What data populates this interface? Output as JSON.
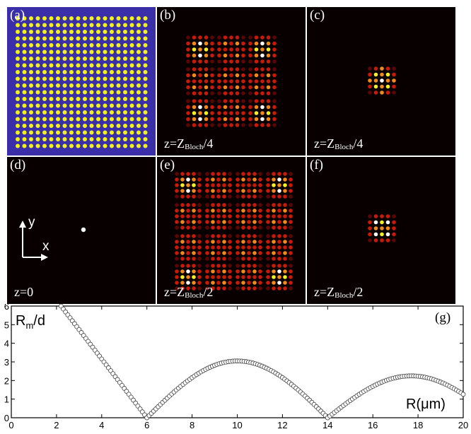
{
  "figure": {
    "panels": [
      {
        "id": "a",
        "label": "(a)",
        "caption": ""
      },
      {
        "id": "b",
        "label": "(b)",
        "caption": {
          "z": "z=Z",
          "sub": "Bloch",
          "frac": "/4"
        }
      },
      {
        "id": "c",
        "label": "(c)",
        "caption": {
          "z": "z=Z",
          "sub": "Bloch",
          "frac": "/4"
        }
      },
      {
        "id": "d",
        "label": "(d)",
        "caption": {
          "z": "z=0",
          "sub": "",
          "frac": ""
        },
        "axis_y": "y",
        "axis_x": "x"
      },
      {
        "id": "e",
        "label": "(e)",
        "caption": {
          "z": "z=Z",
          "sub": "Bloch",
          "frac": "/2"
        }
      },
      {
        "id": "f",
        "label": "(f)",
        "caption": {
          "z": "z=Z",
          "sub": "Bloch",
          "frac": "/2"
        }
      }
    ],
    "colors": {
      "lattice_bg": "#3a2fa8",
      "lattice_dot": "#f2f21a",
      "intensity_bg": "#080000",
      "hot_white": "#ffffff",
      "hot_yellow": "#f5f020",
      "hot_orange": "#f08a18",
      "hot_red": "#c81a0a",
      "hot_dark": "#5a0606"
    }
  },
  "chart_data": {
    "type": "scatter",
    "label": "(g)",
    "ylabel_main": "R",
    "ylabel_sub": "m",
    "ylabel_tail": "/d",
    "xlabel": "R(μm)",
    "xlim": [
      0,
      20
    ],
    "ylim": [
      0,
      6
    ],
    "xticks": [
      "0",
      "2",
      "4",
      "6",
      "8",
      "10",
      "12",
      "14",
      "16",
      "18",
      "20"
    ],
    "yticks": [
      "0",
      "1",
      "2",
      "3",
      "4",
      "5",
      "6"
    ],
    "marker": "open-circle",
    "key_points": [
      {
        "x": 2.2,
        "y": 6.0
      },
      {
        "x": 6.0,
        "y": 0.0
      },
      {
        "x": 9.8,
        "y": 3.05
      },
      {
        "x": 14.0,
        "y": 0.0
      },
      {
        "x": 17.7,
        "y": 2.25
      },
      {
        "x": 20.0,
        "y": 1.45
      }
    ]
  }
}
